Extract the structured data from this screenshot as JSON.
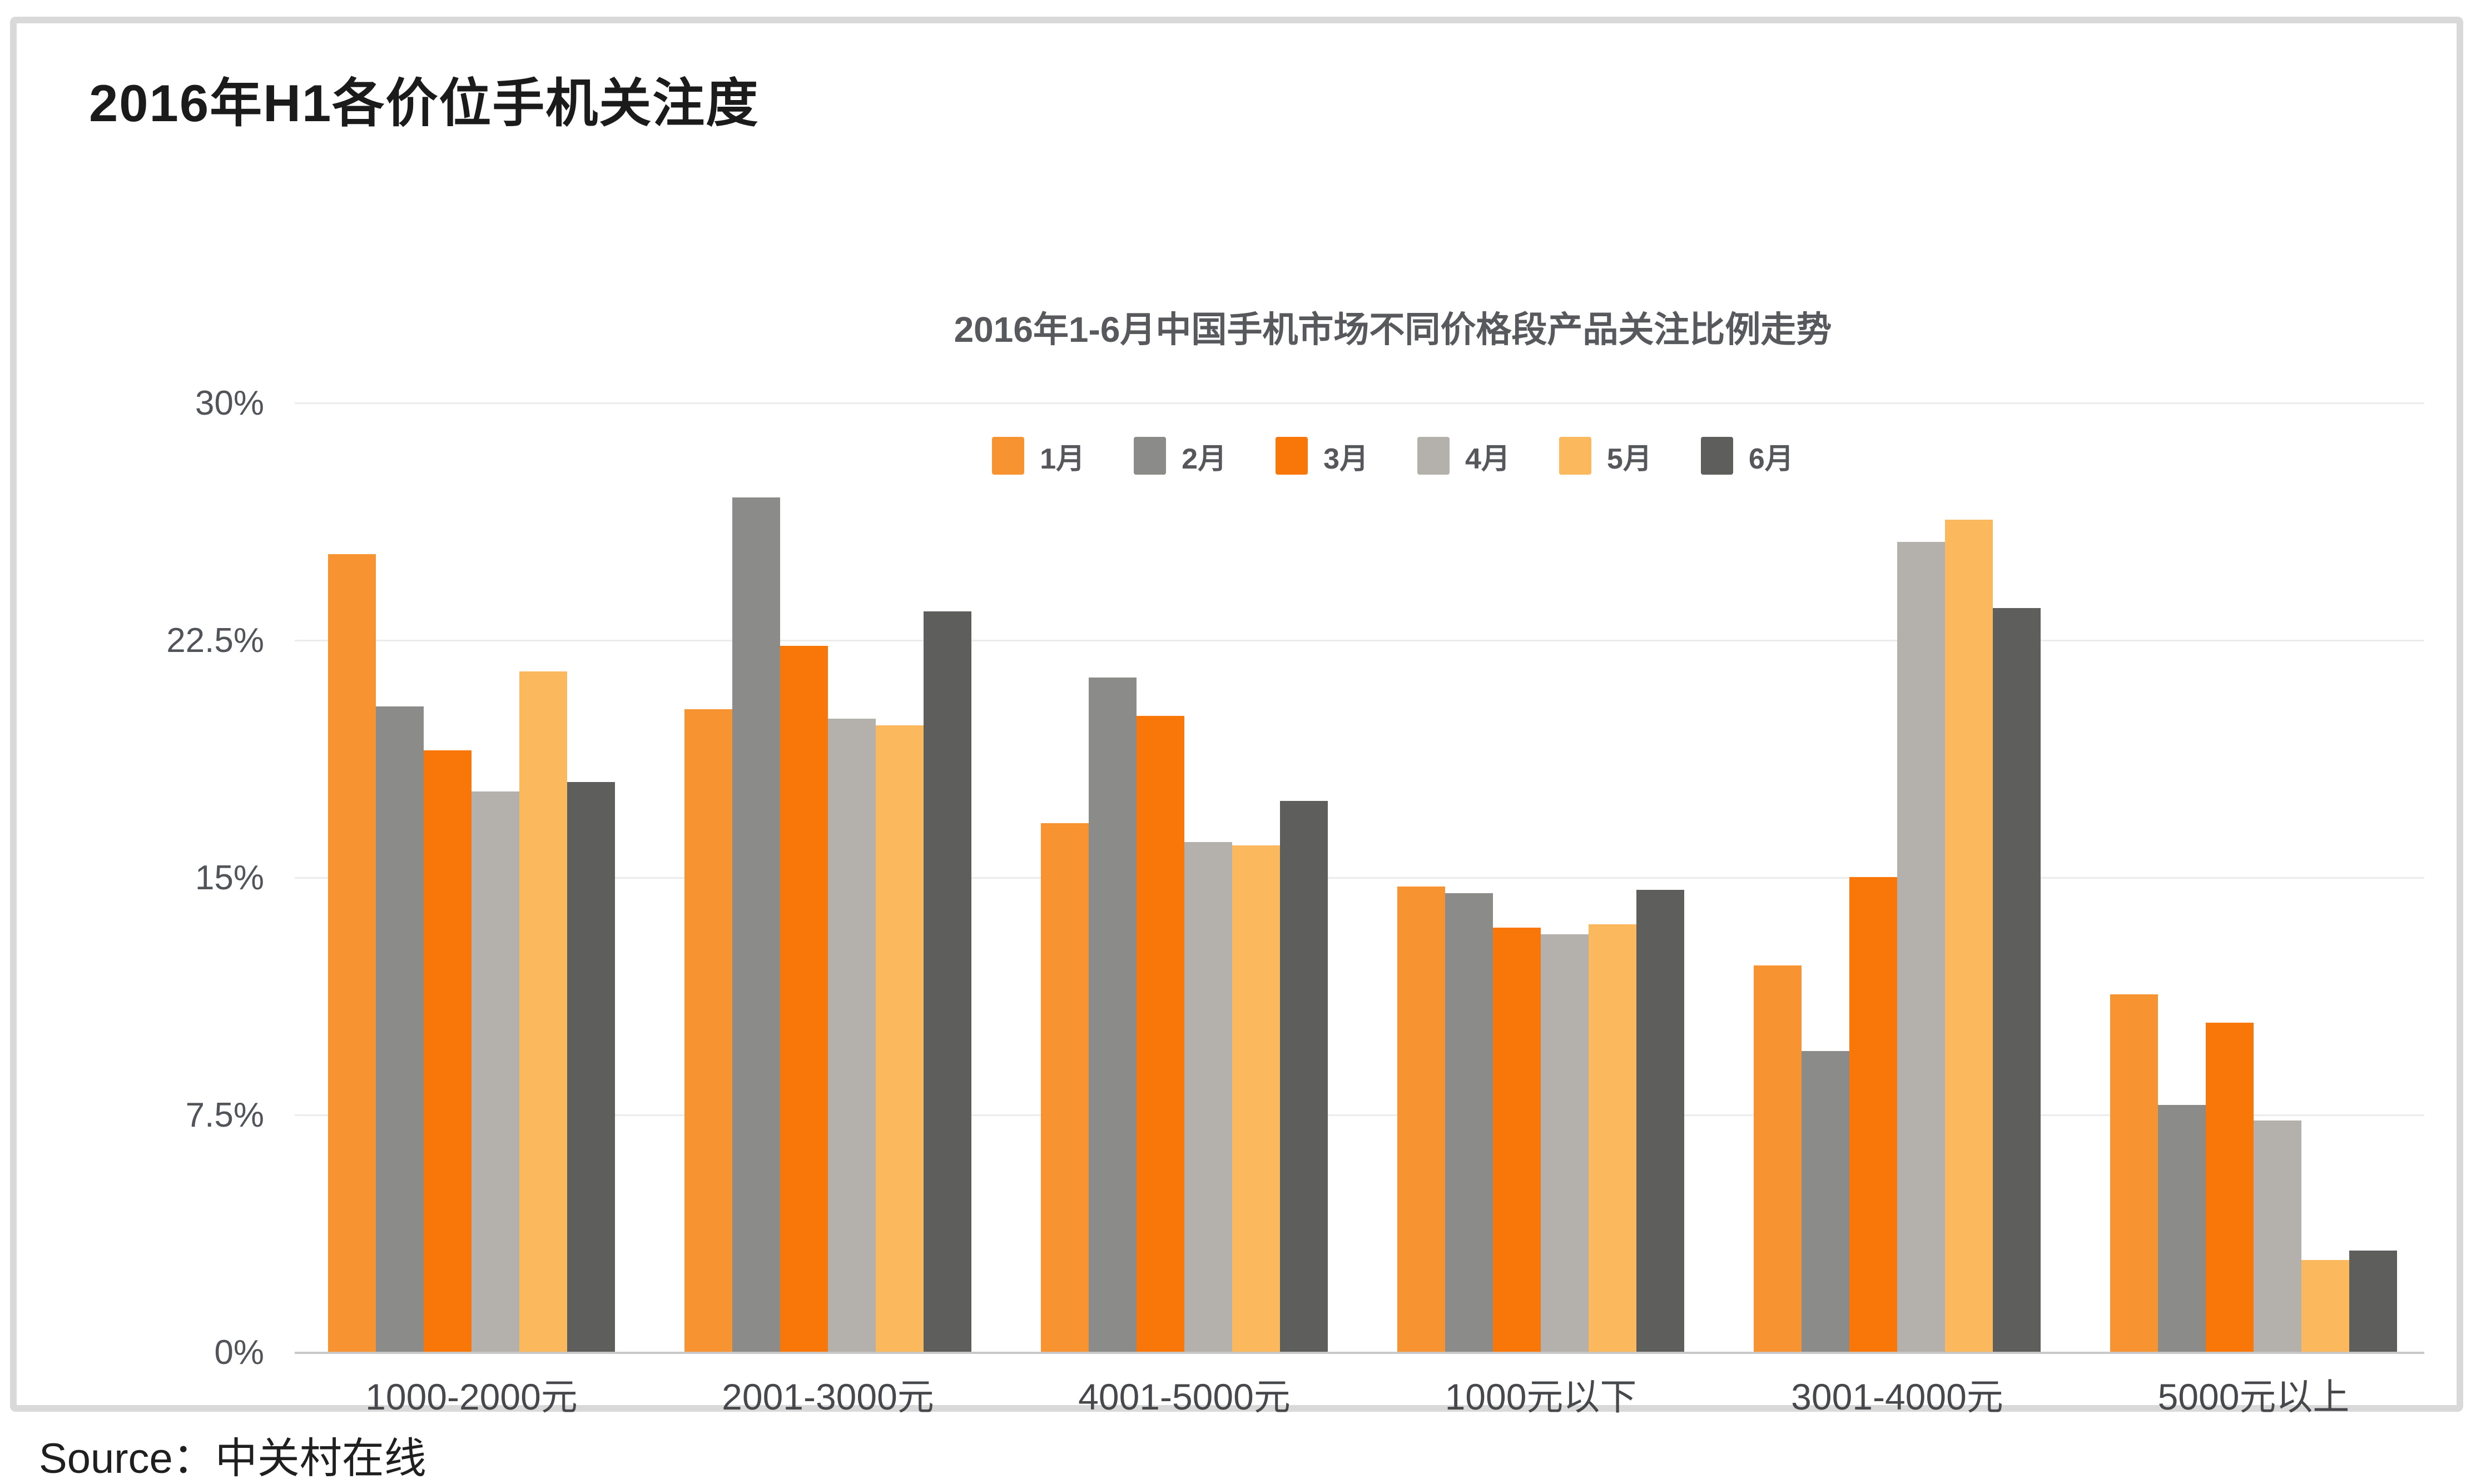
{
  "page": {
    "title": "2016年H1各价位手机关注度",
    "source_label": "Source：中关村在线"
  },
  "chart_data": {
    "type": "bar",
    "title": "2016年1-6月中国手机市场不同价格段产品关注比例走势",
    "categories": [
      "1000-2000元",
      "2001-3000元",
      "4001-5000元",
      "1000元以下",
      "3001-4000元",
      "5000元以上"
    ],
    "series": [
      {
        "name": "1月",
        "color": "#F79331",
        "values": [
          25.2,
          20.3,
          16.7,
          14.7,
          12.2,
          11.3
        ]
      },
      {
        "name": "2月",
        "color": "#8B8B89",
        "values": [
          20.4,
          27.0,
          21.3,
          14.5,
          9.5,
          7.8
        ]
      },
      {
        "name": "3月",
        "color": "#F87708",
        "values": [
          19.0,
          22.3,
          20.1,
          13.4,
          15.0,
          10.4
        ]
      },
      {
        "name": "4月",
        "color": "#B4B0AB",
        "values": [
          17.7,
          20.0,
          16.1,
          13.2,
          25.6,
          7.3
        ]
      },
      {
        "name": "5月",
        "color": "#FBB85C",
        "values": [
          21.5,
          19.8,
          16.0,
          13.5,
          26.3,
          2.9
        ]
      },
      {
        "name": "6月",
        "color": "#5E5E5C",
        "values": [
          18.0,
          23.4,
          17.4,
          14.6,
          23.5,
          3.2
        ]
      }
    ],
    "xlabel": "",
    "ylabel": "",
    "ylim": [
      0,
      30
    ],
    "y_ticks": [
      {
        "label": "30%",
        "value": 30
      },
      {
        "label": "22.5%",
        "value": 22.5
      },
      {
        "label": "15%",
        "value": 15
      },
      {
        "label": "7.5%",
        "value": 7.5
      },
      {
        "label": "0%",
        "value": 0
      }
    ],
    "grid": true,
    "legend_position": "top-center",
    "theme": {
      "grid_color": "#ECECEC",
      "axis_color": "#C8C8C8",
      "card_border_color": "#D9D9D9",
      "text_color": "#515459"
    }
  }
}
